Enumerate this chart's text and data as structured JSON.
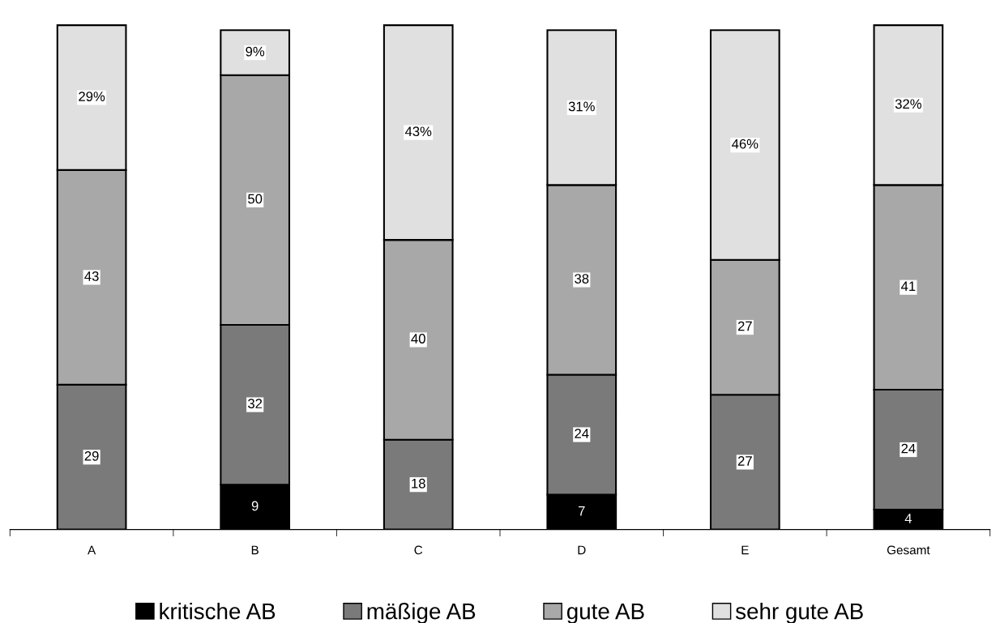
{
  "chart_data": {
    "type": "bar",
    "stacked": true,
    "legend": "bottom",
    "categories": [
      "A",
      "B",
      "C",
      "D",
      "E",
      "Gesamt"
    ],
    "series": [
      {
        "name": "kritische AB",
        "color": "#000000",
        "values": [
          null,
          9,
          null,
          7,
          null,
          4
        ],
        "value_labels": [
          null,
          "9",
          null,
          "7",
          null,
          "4"
        ]
      },
      {
        "name": "mäßige AB",
        "color": "#7a7a7a",
        "values": [
          29,
          32,
          18,
          24,
          27,
          24
        ],
        "value_labels": [
          "29",
          "32",
          "18",
          "24",
          "27",
          "24"
        ]
      },
      {
        "name": "gute AB",
        "color": "#a8a8a8",
        "values": [
          43,
          50,
          40,
          38,
          27,
          41
        ],
        "value_labels": [
          "43",
          "50",
          "40",
          "38",
          "27",
          "41"
        ]
      },
      {
        "name": "sehr gute AB",
        "color": "#e0e0e0",
        "values": [
          29,
          9,
          43,
          31,
          46,
          32
        ],
        "value_labels": [
          "29%",
          "9%",
          "43%",
          "31%",
          "46%",
          "32%"
        ]
      }
    ]
  }
}
